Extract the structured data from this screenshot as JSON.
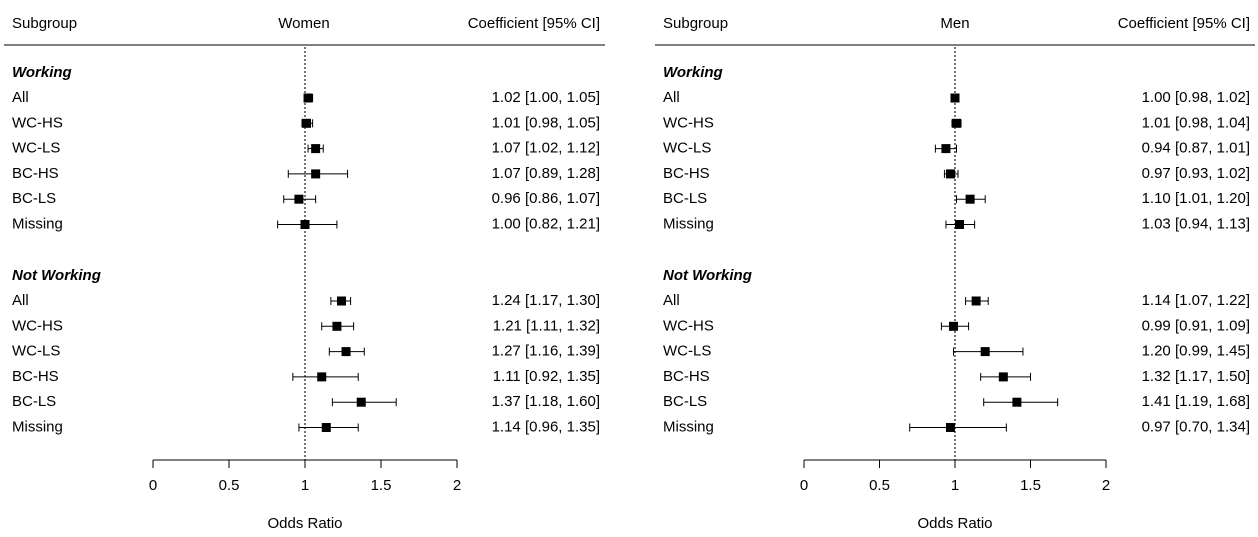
{
  "chart_data": [
    {
      "type": "forest",
      "panel": "Women",
      "headers": {
        "subgroup": "Subgroup",
        "title": "Women",
        "coef": "Coefficient [95% CI]"
      },
      "xlabel": "Odds Ratio",
      "xlim": [
        0,
        2
      ],
      "xticks": [
        "0",
        "0.5",
        "1",
        "1.5",
        "2"
      ],
      "reference_line": 1,
      "sections": [
        {
          "label": "Working",
          "rows": [
            {
              "label": "All",
              "estimate": 1.02,
              "lower": 1.0,
              "upper": 1.05,
              "text": "1.02 [1.00, 1.05]"
            },
            {
              "label": "WC-HS",
              "estimate": 1.01,
              "lower": 0.98,
              "upper": 1.05,
              "text": "1.01 [0.98, 1.05]"
            },
            {
              "label": "WC-LS",
              "estimate": 1.07,
              "lower": 1.02,
              "upper": 1.12,
              "text": "1.07 [1.02, 1.12]"
            },
            {
              "label": "BC-HS",
              "estimate": 1.07,
              "lower": 0.89,
              "upper": 1.28,
              "text": "1.07 [0.89, 1.28]"
            },
            {
              "label": "BC-LS",
              "estimate": 0.96,
              "lower": 0.86,
              "upper": 1.07,
              "text": "0.96 [0.86, 1.07]"
            },
            {
              "label": "Missing",
              "estimate": 1.0,
              "lower": 0.82,
              "upper": 1.21,
              "text": "1.00 [0.82, 1.21]"
            }
          ]
        },
        {
          "label": "Not Working",
          "rows": [
            {
              "label": "All",
              "estimate": 1.24,
              "lower": 1.17,
              "upper": 1.3,
              "text": "1.24 [1.17, 1.30]"
            },
            {
              "label": "WC-HS",
              "estimate": 1.21,
              "lower": 1.11,
              "upper": 1.32,
              "text": "1.21 [1.11, 1.32]"
            },
            {
              "label": "WC-LS",
              "estimate": 1.27,
              "lower": 1.16,
              "upper": 1.39,
              "text": "1.27 [1.16, 1.39]"
            },
            {
              "label": "BC-HS",
              "estimate": 1.11,
              "lower": 0.92,
              "upper": 1.35,
              "text": "1.11 [0.92, 1.35]"
            },
            {
              "label": "BC-LS",
              "estimate": 1.37,
              "lower": 1.18,
              "upper": 1.6,
              "text": "1.37 [1.18, 1.60]"
            },
            {
              "label": "Missing",
              "estimate": 1.14,
              "lower": 0.96,
              "upper": 1.35,
              "text": "1.14 [0.96, 1.35]"
            }
          ]
        }
      ]
    },
    {
      "type": "forest",
      "panel": "Men",
      "headers": {
        "subgroup": "Subgroup",
        "title": "Men",
        "coef": "Coefficient [95% CI]"
      },
      "xlabel": "Odds Ratio",
      "xlim": [
        0,
        2
      ],
      "xticks": [
        "0",
        "0.5",
        "1",
        "1.5",
        "2"
      ],
      "reference_line": 1,
      "sections": [
        {
          "label": "Working",
          "rows": [
            {
              "label": "All",
              "estimate": 1.0,
              "lower": 0.98,
              "upper": 1.02,
              "text": "1.00 [0.98, 1.02]"
            },
            {
              "label": "WC-HS",
              "estimate": 1.01,
              "lower": 0.98,
              "upper": 1.04,
              "text": "1.01 [0.98, 1.04]"
            },
            {
              "label": "WC-LS",
              "estimate": 0.94,
              "lower": 0.87,
              "upper": 1.01,
              "text": "0.94 [0.87, 1.01]"
            },
            {
              "label": "BC-HS",
              "estimate": 0.97,
              "lower": 0.93,
              "upper": 1.02,
              "text": "0.97 [0.93, 1.02]"
            },
            {
              "label": "BC-LS",
              "estimate": 1.1,
              "lower": 1.01,
              "upper": 1.2,
              "text": "1.10 [1.01, 1.20]"
            },
            {
              "label": "Missing",
              "estimate": 1.03,
              "lower": 0.94,
              "upper": 1.13,
              "text": "1.03 [0.94, 1.13]"
            }
          ]
        },
        {
          "label": "Not Working",
          "rows": [
            {
              "label": "All",
              "estimate": 1.14,
              "lower": 1.07,
              "upper": 1.22,
              "text": "1.14 [1.07, 1.22]"
            },
            {
              "label": "WC-HS",
              "estimate": 0.99,
              "lower": 0.91,
              "upper": 1.09,
              "text": "0.99 [0.91, 1.09]"
            },
            {
              "label": "WC-LS",
              "estimate": 1.2,
              "lower": 0.99,
              "upper": 1.45,
              "text": "1.20 [0.99, 1.45]"
            },
            {
              "label": "BC-HS",
              "estimate": 1.32,
              "lower": 1.17,
              "upper": 1.5,
              "text": "1.32 [1.17, 1.50]"
            },
            {
              "label": "BC-LS",
              "estimate": 1.41,
              "lower": 1.19,
              "upper": 1.68,
              "text": "1.41 [1.19, 1.68]"
            },
            {
              "label": "Missing",
              "estimate": 0.97,
              "lower": 0.7,
              "upper": 1.34,
              "text": "0.97 [0.70, 1.34]"
            }
          ]
        }
      ]
    }
  ]
}
